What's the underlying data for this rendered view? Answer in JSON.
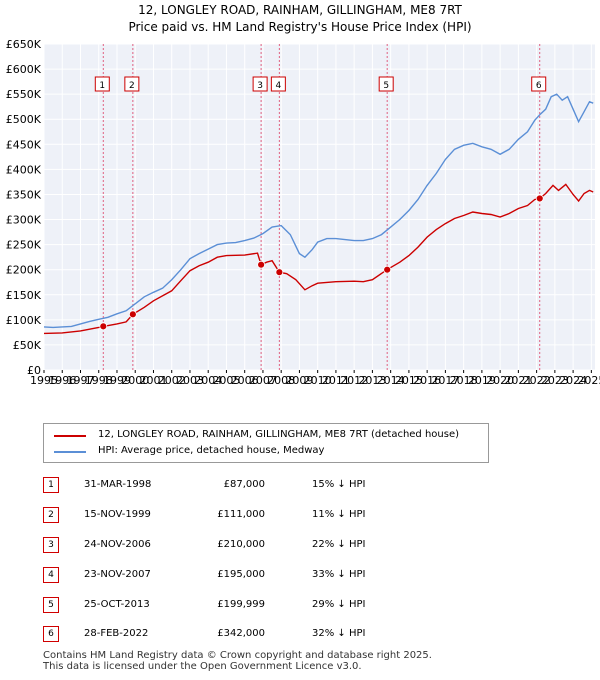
{
  "chart_data": {
    "type": "line",
    "title": "12, LONGLEY ROAD, RAINHAM, GILLINGHAM, ME8 7RT",
    "subtitle": "Price paid vs. HM Land Registry's House Price Index (HPI)",
    "xlim": [
      1995,
      2025.2
    ],
    "ylim": [
      0,
      650000
    ],
    "x_ticks": [
      "1995",
      "1996",
      "1997",
      "1998",
      "1999",
      "2000",
      "2001",
      "2002",
      "2003",
      "2004",
      "2005",
      "2006",
      "2007",
      "2008",
      "2009",
      "2010",
      "2011",
      "2012",
      "2013",
      "2014",
      "2015",
      "2016",
      "2017",
      "2018",
      "2019",
      "2020",
      "2021",
      "2022",
      "2023",
      "2024",
      "2025"
    ],
    "y_ticks": [
      {
        "value": 0,
        "label": "£0"
      },
      {
        "value": 50000,
        "label": "£50K"
      },
      {
        "value": 100000,
        "label": "£100K"
      },
      {
        "value": 150000,
        "label": "£150K"
      },
      {
        "value": 200000,
        "label": "£200K"
      },
      {
        "value": 250000,
        "label": "£250K"
      },
      {
        "value": 300000,
        "label": "£300K"
      },
      {
        "value": 350000,
        "label": "£350K"
      },
      {
        "value": 400000,
        "label": "£400K"
      },
      {
        "value": 450000,
        "label": "£450K"
      },
      {
        "value": 500000,
        "label": "£500K"
      },
      {
        "value": 550000,
        "label": "£550K"
      },
      {
        "value": 600000,
        "label": "£600K"
      },
      {
        "value": 650000,
        "label": "£650K"
      }
    ],
    "grid": true,
    "legend_position": "below",
    "series": [
      {
        "name": "12, LONGLEY ROAD, RAINHAM, GILLINGHAM, ME8 7RT (detached house)",
        "color": "#cc0000",
        "points": [
          [
            1995.0,
            73000
          ],
          [
            1996.0,
            74000
          ],
          [
            1997.0,
            78000
          ],
          [
            1998.0,
            85000
          ],
          [
            1998.25,
            87000
          ],
          [
            1999.0,
            92000
          ],
          [
            1999.5,
            96000
          ],
          [
            1999.87,
            111000
          ],
          [
            2000.5,
            125000
          ],
          [
            2001.0,
            138000
          ],
          [
            2002.0,
            158000
          ],
          [
            2002.5,
            178000
          ],
          [
            2003.0,
            198000
          ],
          [
            2003.5,
            208000
          ],
          [
            2004.0,
            215000
          ],
          [
            2004.5,
            225000
          ],
          [
            2005.0,
            228000
          ],
          [
            2006.0,
            229000
          ],
          [
            2006.7,
            233000
          ],
          [
            2006.9,
            210000
          ],
          [
            2007.2,
            215000
          ],
          [
            2007.5,
            218000
          ],
          [
            2007.9,
            195000
          ],
          [
            2008.3,
            192000
          ],
          [
            2008.8,
            180000
          ],
          [
            2009.3,
            160000
          ],
          [
            2009.7,
            168000
          ],
          [
            2010.0,
            173000
          ],
          [
            2011.0,
            176000
          ],
          [
            2012.0,
            177000
          ],
          [
            2012.5,
            176000
          ],
          [
            2013.0,
            180000
          ],
          [
            2013.8,
            199999
          ],
          [
            2014.5,
            215000
          ],
          [
            2015.0,
            228000
          ],
          [
            2015.5,
            245000
          ],
          [
            2016.0,
            265000
          ],
          [
            2016.5,
            280000
          ],
          [
            2017.0,
            292000
          ],
          [
            2017.5,
            302000
          ],
          [
            2018.0,
            308000
          ],
          [
            2018.5,
            315000
          ],
          [
            2019.0,
            312000
          ],
          [
            2019.5,
            310000
          ],
          [
            2020.0,
            305000
          ],
          [
            2020.5,
            312000
          ],
          [
            2021.0,
            322000
          ],
          [
            2021.5,
            328000
          ],
          [
            2021.9,
            340000
          ],
          [
            2022.17,
            342000
          ],
          [
            2022.5,
            352000
          ],
          [
            2022.9,
            368000
          ],
          [
            2023.2,
            358000
          ],
          [
            2023.6,
            370000
          ],
          [
            2024.0,
            350000
          ],
          [
            2024.3,
            337000
          ],
          [
            2024.6,
            352000
          ],
          [
            2024.9,
            358000
          ],
          [
            2025.1,
            355000
          ]
        ]
      },
      {
        "name": "HPI: Average price, detached house, Medway",
        "color": "#5b8fd6",
        "points": [
          [
            1995.0,
            86000
          ],
          [
            1995.5,
            85000
          ],
          [
            1996.0,
            86000
          ],
          [
            1996.5,
            87000
          ],
          [
            1997.0,
            92000
          ],
          [
            1997.5,
            97000
          ],
          [
            1998.0,
            101000
          ],
          [
            1998.5,
            105000
          ],
          [
            1999.0,
            112000
          ],
          [
            1999.5,
            118000
          ],
          [
            2000.0,
            132000
          ],
          [
            2000.5,
            146000
          ],
          [
            2001.0,
            155000
          ],
          [
            2001.5,
            163000
          ],
          [
            2002.0,
            180000
          ],
          [
            2002.5,
            200000
          ],
          [
            2003.0,
            222000
          ],
          [
            2003.5,
            232000
          ],
          [
            2004.0,
            241000
          ],
          [
            2004.5,
            250000
          ],
          [
            2005.0,
            253000
          ],
          [
            2005.5,
            254000
          ],
          [
            2006.0,
            258000
          ],
          [
            2006.5,
            263000
          ],
          [
            2007.0,
            272000
          ],
          [
            2007.5,
            285000
          ],
          [
            2008.0,
            288000
          ],
          [
            2008.5,
            270000
          ],
          [
            2009.0,
            232000
          ],
          [
            2009.3,
            225000
          ],
          [
            2009.7,
            240000
          ],
          [
            2010.0,
            255000
          ],
          [
            2010.5,
            262000
          ],
          [
            2011.0,
            262000
          ],
          [
            2011.5,
            260000
          ],
          [
            2012.0,
            258000
          ],
          [
            2012.5,
            258000
          ],
          [
            2013.0,
            262000
          ],
          [
            2013.5,
            270000
          ],
          [
            2014.0,
            285000
          ],
          [
            2014.5,
            300000
          ],
          [
            2015.0,
            318000
          ],
          [
            2015.5,
            340000
          ],
          [
            2016.0,
            368000
          ],
          [
            2016.5,
            392000
          ],
          [
            2017.0,
            420000
          ],
          [
            2017.5,
            440000
          ],
          [
            2018.0,
            448000
          ],
          [
            2018.5,
            452000
          ],
          [
            2019.0,
            445000
          ],
          [
            2019.5,
            440000
          ],
          [
            2020.0,
            430000
          ],
          [
            2020.5,
            440000
          ],
          [
            2021.0,
            460000
          ],
          [
            2021.5,
            475000
          ],
          [
            2021.9,
            498000
          ],
          [
            2022.2,
            510000
          ],
          [
            2022.5,
            520000
          ],
          [
            2022.8,
            545000
          ],
          [
            2023.1,
            550000
          ],
          [
            2023.4,
            538000
          ],
          [
            2023.7,
            545000
          ],
          [
            2024.0,
            520000
          ],
          [
            2024.3,
            495000
          ],
          [
            2024.6,
            515000
          ],
          [
            2024.9,
            535000
          ],
          [
            2025.1,
            532000
          ]
        ]
      }
    ],
    "annotations": [
      {
        "label": "1",
        "x": 1998.25,
        "y": 87000
      },
      {
        "label": "2",
        "x": 1999.87,
        "y": 111000
      },
      {
        "label": "3",
        "x": 2006.9,
        "y": 210000
      },
      {
        "label": "4",
        "x": 2007.9,
        "y": 195000
      },
      {
        "label": "5",
        "x": 2013.81,
        "y": 199999
      },
      {
        "label": "6",
        "x": 2022.17,
        "y": 342000
      }
    ]
  },
  "legend": {
    "series1_label": "12, LONGLEY ROAD, RAINHAM, GILLINGHAM, ME8 7RT (detached house)",
    "series2_label": "HPI: Average price, detached house, Medway",
    "series1_color": "#cc0000",
    "series2_color": "#5b8fd6"
  },
  "transactions": [
    {
      "num": "1",
      "date": "31-MAR-1998",
      "price": "£87,000",
      "hpi": "15% ↓ HPI"
    },
    {
      "num": "2",
      "date": "15-NOV-1999",
      "price": "£111,000",
      "hpi": "11% ↓ HPI"
    },
    {
      "num": "3",
      "date": "24-NOV-2006",
      "price": "£210,000",
      "hpi": "22% ↓ HPI"
    },
    {
      "num": "4",
      "date": "23-NOV-2007",
      "price": "£195,000",
      "hpi": "33% ↓ HPI"
    },
    {
      "num": "5",
      "date": "25-OCT-2013",
      "price": "£199,999",
      "hpi": "29% ↓ HPI"
    },
    {
      "num": "6",
      "date": "28-FEB-2022",
      "price": "£342,000",
      "hpi": "32% ↓ HPI"
    }
  ],
  "footer": {
    "line1": "Contains HM Land Registry data © Crown copyright and database right 2025.",
    "line2": "This data is licensed under the Open Government Licence v3.0."
  }
}
